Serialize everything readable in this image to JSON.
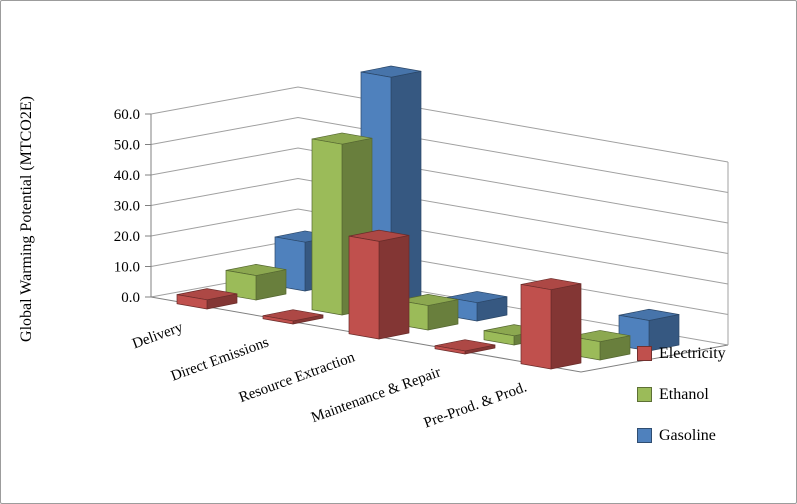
{
  "window": {
    "background": "#ffffff",
    "border_color": "#9c9c9c"
  },
  "chart_data": {
    "type": "bar",
    "projection": "3d",
    "title": "",
    "ylabel": "Global Warming Potential (MTCO2E)",
    "xlabel": "",
    "categories": [
      "Delivery",
      "Direct Emissions",
      "Resource Extraction",
      "Maintenance & Repair",
      "Pre-Prod. & Prod."
    ],
    "series": [
      {
        "name": "Electricity",
        "color": "#C0504D",
        "values": [
          3,
          1,
          32,
          1,
          26
        ]
      },
      {
        "name": "Ethanol",
        "color": "#9BBB59",
        "values": [
          8,
          56,
          8,
          3,
          6
        ]
      },
      {
        "name": "Gasoline",
        "color": "#4F81BD",
        "values": [
          16,
          75,
          6,
          0,
          10
        ]
      }
    ],
    "ylim": [
      0,
      60
    ],
    "ytick_step": 10,
    "yticklabels": [
      "0.0",
      "10.0",
      "20.0",
      "30.0",
      "40.0",
      "50.0",
      "60.0"
    ],
    "grid": true,
    "legend_position": "right",
    "gridline_color": "#a0a0a0",
    "axis_color": "#808080"
  }
}
